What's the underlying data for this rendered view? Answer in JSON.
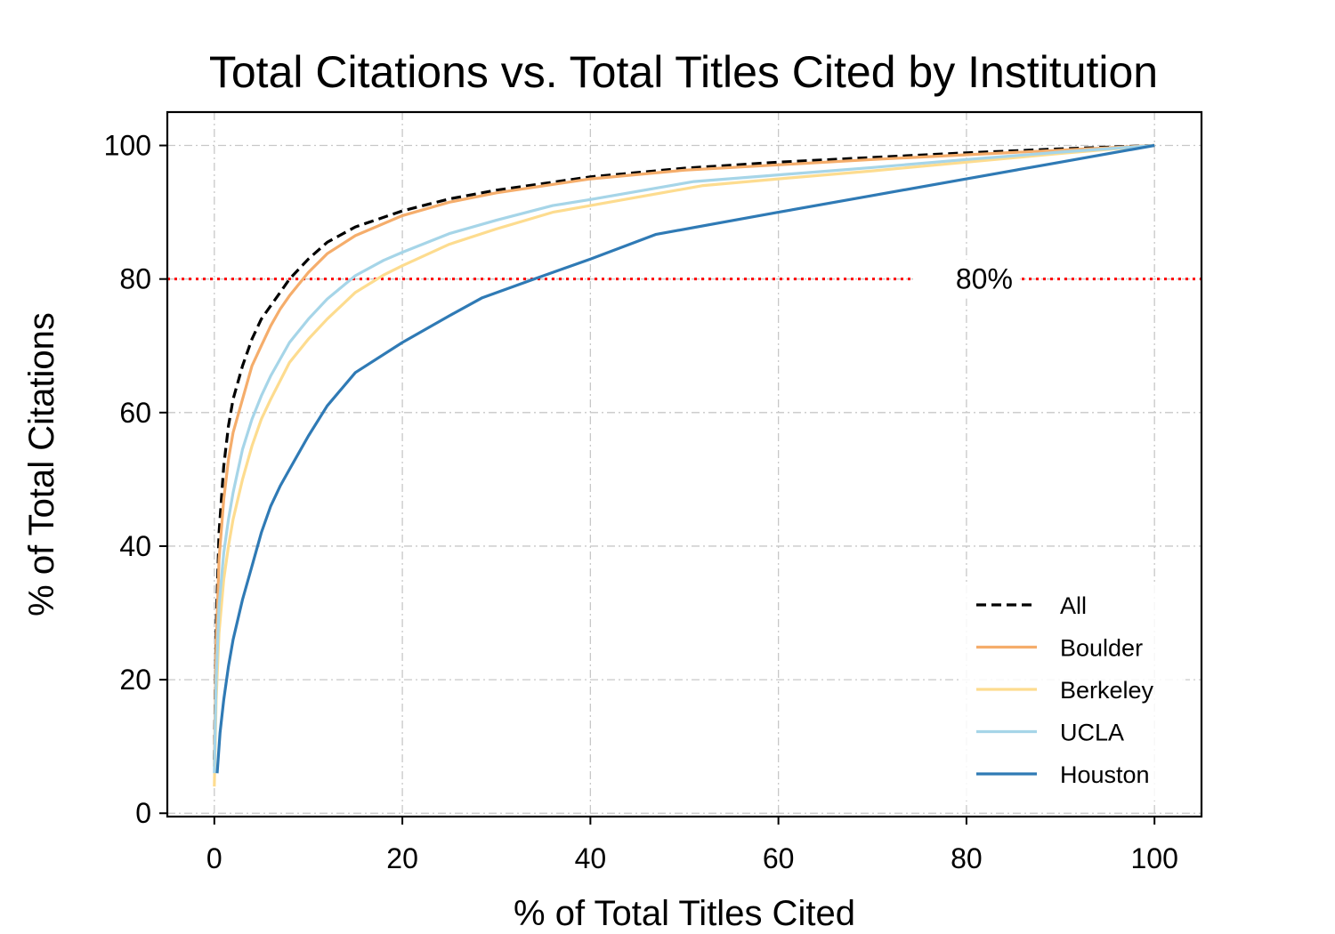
{
  "chart_data": {
    "type": "line",
    "title": "Total Citations vs. Total Titles Cited by Institution",
    "xlabel": "% of Total Titles Cited",
    "ylabel": "% of Total Citations",
    "xlim": [
      -5,
      105
    ],
    "ylim": [
      -0.5,
      105
    ],
    "xticks": [
      0,
      20,
      40,
      60,
      80,
      100
    ],
    "yticks": [
      0,
      20,
      40,
      60,
      80,
      100
    ],
    "grid": true,
    "legend_position": "lower-right",
    "reference_line": {
      "y": 80,
      "label": "80%",
      "color": "#ff0000",
      "style": "dotted",
      "label_x": 80
    },
    "series": [
      {
        "name": "All",
        "color": "#000000",
        "dash": "dashed",
        "x": [
          0,
          0.2,
          0.5,
          1,
          1.5,
          2,
          3,
          4,
          5,
          6,
          7,
          8,
          10,
          12,
          15,
          20,
          25,
          30,
          40,
          50,
          60,
          70,
          80,
          90,
          100
        ],
        "y": [
          8,
          28,
          42,
          52,
          58,
          62,
          67,
          71,
          74,
          76,
          78,
          80,
          83,
          85.5,
          87.8,
          90.2,
          92,
          93.3,
          95.3,
          96.6,
          97.5,
          98.2,
          98.9,
          99.5,
          100
        ]
      },
      {
        "name": "Boulder",
        "color": "#f5ad6b",
        "dash": "solid",
        "x": [
          0,
          0.2,
          0.5,
          1,
          1.5,
          2,
          3,
          4,
          5,
          6,
          7,
          8,
          10,
          12,
          15,
          20,
          25,
          30,
          40,
          50,
          60,
          70,
          80,
          90,
          100
        ],
        "y": [
          7,
          25,
          38,
          47,
          53,
          57,
          62,
          67,
          70,
          73,
          75.5,
          77.5,
          81,
          83.8,
          86.5,
          89.5,
          91.5,
          92.9,
          95,
          96.3,
          97.1,
          97.9,
          98.6,
          99.3,
          100
        ]
      },
      {
        "name": "Berkeley",
        "color": "#fddc8f",
        "dash": "solid",
        "x": [
          0,
          0.2,
          0.5,
          1,
          1.5,
          2,
          3,
          4,
          5,
          6,
          8,
          10,
          12,
          15,
          18,
          20,
          25,
          30,
          36,
          40,
          52,
          60,
          70,
          80,
          90,
          100
        ],
        "y": [
          4,
          17,
          27,
          35,
          40,
          44,
          50,
          55,
          59,
          62,
          67.5,
          71,
          74,
          78,
          80.6,
          82,
          85.2,
          87.5,
          90,
          91,
          94,
          95,
          96.2,
          97.5,
          98.8,
          100
        ]
      },
      {
        "name": "UCLA",
        "color": "#a6d5e8",
        "dash": "solid",
        "x": [
          0,
          0.2,
          0.5,
          1,
          1.5,
          2,
          3,
          4,
          5,
          6,
          8,
          10,
          12,
          15,
          18,
          20,
          25,
          30,
          36,
          40,
          51,
          60,
          70,
          80,
          90,
          100
        ],
        "y": [
          6,
          20,
          31,
          39,
          44,
          48,
          54.5,
          59,
          62.5,
          65.5,
          70.5,
          74,
          77,
          80.5,
          82.8,
          84,
          86.8,
          88.8,
          91,
          91.9,
          94.6,
          95.6,
          96.7,
          97.9,
          99,
          100
        ]
      },
      {
        "name": "Houston",
        "color": "#2f7ab5",
        "dash": "solid",
        "x": [
          0.3,
          0.6,
          1,
          1.5,
          2,
          3,
          4,
          5,
          6,
          7,
          8,
          10,
          12,
          15,
          20,
          25,
          28.5,
          34,
          40,
          47,
          60,
          70,
          80,
          90,
          100
        ],
        "y": [
          6,
          12,
          17,
          22,
          26,
          32,
          37,
          42,
          46,
          49,
          51.5,
          56.5,
          61,
          66,
          70.5,
          74.5,
          77.2,
          80,
          83,
          86.7,
          90,
          92.5,
          95,
          97.5,
          100
        ]
      }
    ]
  }
}
